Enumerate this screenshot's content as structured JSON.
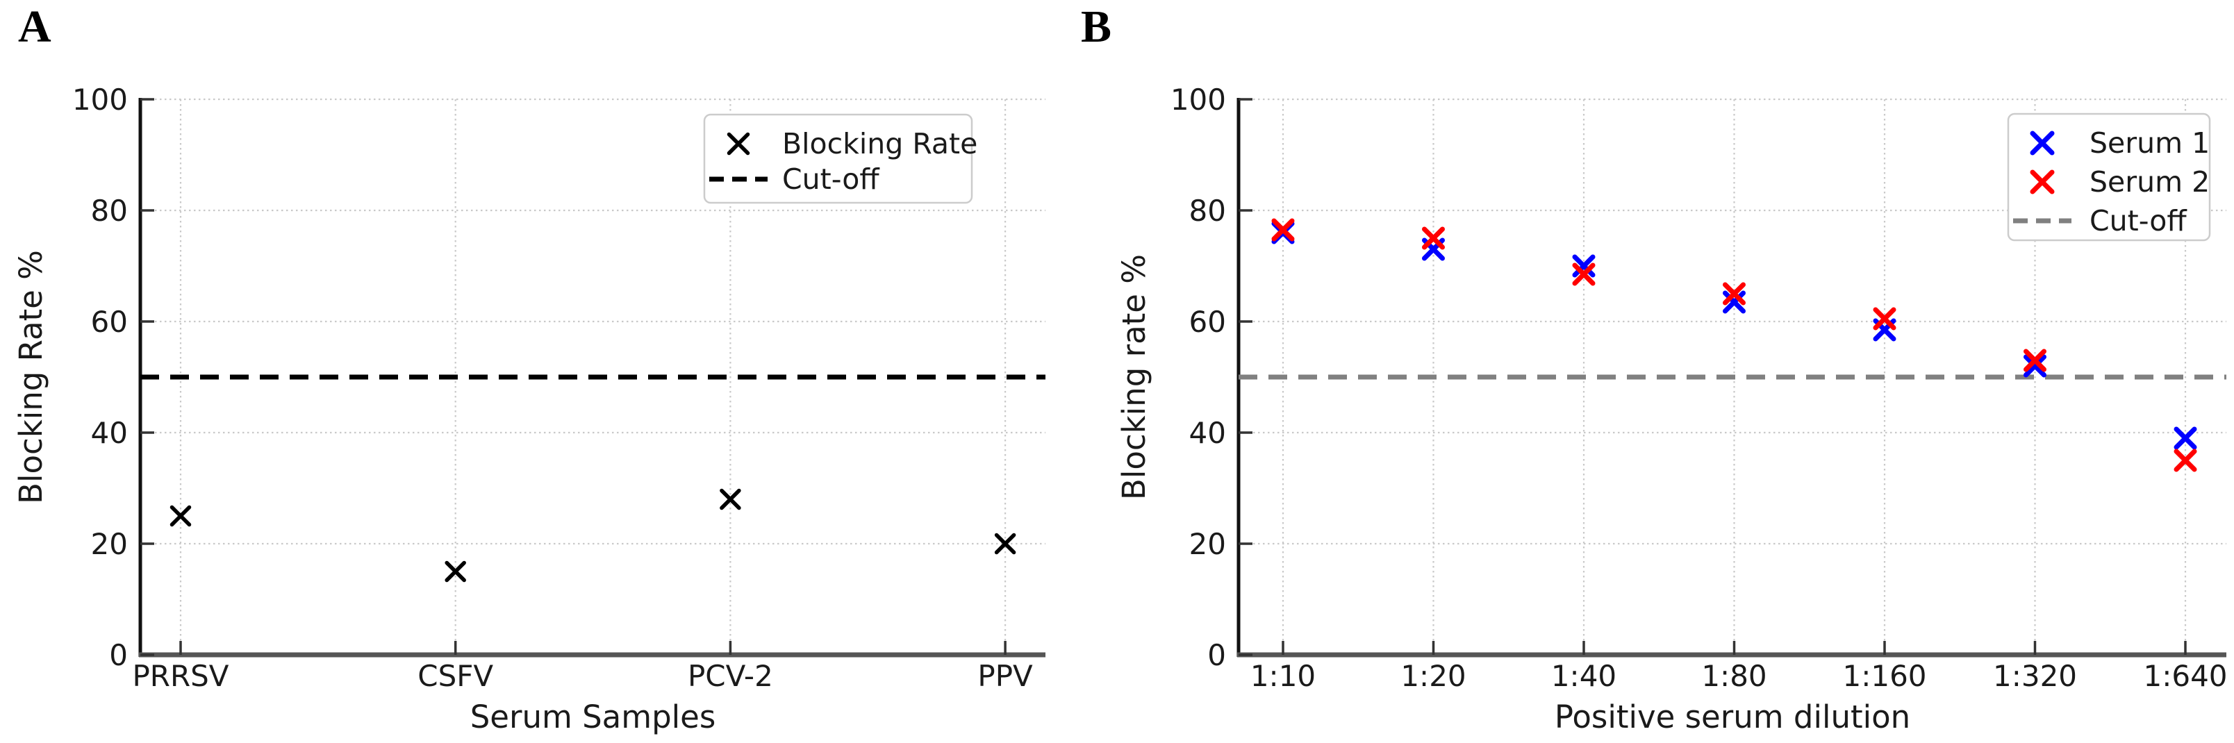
{
  "chart_data": [
    {
      "panel_label": "A",
      "type": "scatter",
      "title": "",
      "xlabel": "Serum Samples",
      "ylabel": "Blocking Rate %",
      "categories": [
        "PRRSV",
        "CSFV",
        "PCV-2",
        "PPV"
      ],
      "ylim": [
        0,
        100
      ],
      "yticks": [
        0,
        20,
        40,
        60,
        80,
        100
      ],
      "grid": true,
      "legend_position": "top-right",
      "legend_entries": [
        "Blocking Rate",
        "Cut-off"
      ],
      "series": [
        {
          "name": "Blocking Rate",
          "marker": "x",
          "color": "#000000",
          "values": [
            25,
            15,
            28,
            20
          ]
        }
      ],
      "cutoff_line": {
        "name": "Cut-off",
        "value": 50,
        "color": "#000000",
        "style": "dashed"
      }
    },
    {
      "panel_label": "B",
      "type": "scatter",
      "title": "",
      "xlabel": "Positive serum dilution",
      "ylabel": "Blocking rate %",
      "categories": [
        "1:10",
        "1:20",
        "1:40",
        "1:80",
        "1:160",
        "1:320",
        "1:640"
      ],
      "ylim": [
        0,
        100
      ],
      "yticks": [
        0,
        20,
        40,
        60,
        80,
        100
      ],
      "grid": true,
      "legend_position": "top-right",
      "legend_entries": [
        "Serum 1",
        "Serum 2",
        "Cut-off"
      ],
      "series": [
        {
          "name": "Serum 1",
          "marker": "x",
          "color": "#0000ff",
          "values": [
            76,
            73,
            70,
            63.5,
            58.5,
            52,
            39
          ]
        },
        {
          "name": "Serum 2",
          "marker": "x",
          "color": "#ff0000",
          "values": [
            76.5,
            75,
            68.5,
            65,
            60.5,
            53,
            35
          ]
        }
      ],
      "cutoff_line": {
        "name": "Cut-off",
        "value": 50,
        "color": "#808080",
        "style": "dashed"
      }
    }
  ]
}
